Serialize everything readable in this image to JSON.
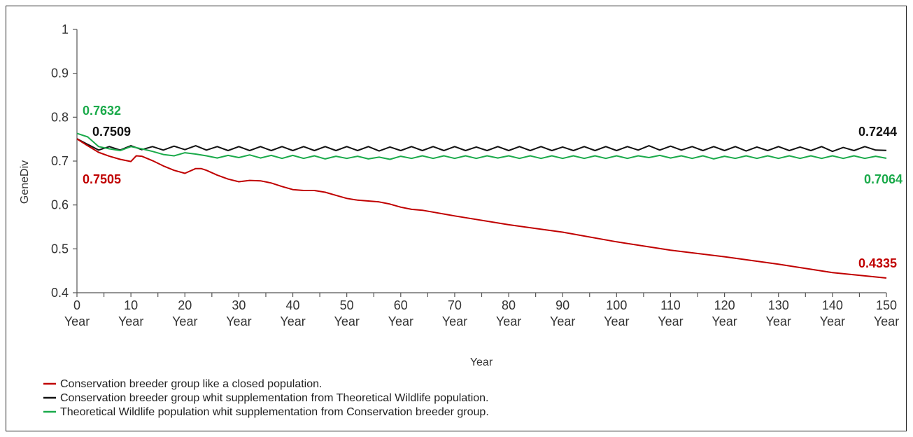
{
  "chart_data": {
    "type": "line",
    "title": "",
    "xlabel": "Year",
    "ylabel": "GeneDiv",
    "xlim": [
      0,
      150
    ],
    "ylim": [
      0.4,
      1
    ],
    "yticks": [
      "0.4",
      "0.5",
      "0.6",
      "0.7",
      "0.8",
      "0.9",
      "1"
    ],
    "xtick_values": [
      0,
      10,
      20,
      30,
      40,
      50,
      60,
      70,
      80,
      90,
      100,
      110,
      120,
      130,
      140,
      150
    ],
    "xtick_unit": "Year",
    "legend_position": "bottom",
    "grid": false,
    "series": [
      {
        "name": "Conservation breeder group like a closed population.",
        "color": "#c00000",
        "points": [
          [
            0,
            0.7505
          ],
          [
            2,
            0.735
          ],
          [
            4,
            0.72
          ],
          [
            6,
            0.711
          ],
          [
            8,
            0.704
          ],
          [
            10,
            0.699
          ],
          [
            11,
            0.712
          ],
          [
            12,
            0.711
          ],
          [
            14,
            0.701
          ],
          [
            16,
            0.689
          ],
          [
            18,
            0.679
          ],
          [
            20,
            0.672
          ],
          [
            22,
            0.683
          ],
          [
            23,
            0.683
          ],
          [
            24,
            0.679
          ],
          [
            26,
            0.668
          ],
          [
            28,
            0.659
          ],
          [
            30,
            0.653
          ],
          [
            32,
            0.656
          ],
          [
            34,
            0.655
          ],
          [
            36,
            0.65
          ],
          [
            38,
            0.642
          ],
          [
            40,
            0.635
          ],
          [
            42,
            0.633
          ],
          [
            44,
            0.633
          ],
          [
            46,
            0.629
          ],
          [
            48,
            0.622
          ],
          [
            50,
            0.615
          ],
          [
            52,
            0.611
          ],
          [
            54,
            0.609
          ],
          [
            56,
            0.607
          ],
          [
            58,
            0.602
          ],
          [
            60,
            0.595
          ],
          [
            62,
            0.59
          ],
          [
            64,
            0.588
          ],
          [
            70,
            0.575
          ],
          [
            80,
            0.555
          ],
          [
            90,
            0.538
          ],
          [
            100,
            0.516
          ],
          [
            110,
            0.497
          ],
          [
            120,
            0.482
          ],
          [
            130,
            0.465
          ],
          [
            140,
            0.446
          ],
          [
            150,
            0.4335
          ]
        ]
      },
      {
        "name": "Conservation breeder group whit supplementation from Theoretical Wildlife population.",
        "color": "#111111",
        "points": [
          [
            0,
            0.7509
          ],
          [
            2,
            0.738
          ],
          [
            4,
            0.725
          ],
          [
            6,
            0.733
          ],
          [
            8,
            0.725
          ],
          [
            10,
            0.735
          ],
          [
            12,
            0.726
          ],
          [
            14,
            0.733
          ],
          [
            16,
            0.725
          ],
          [
            18,
            0.734
          ],
          [
            20,
            0.726
          ],
          [
            22,
            0.735
          ],
          [
            24,
            0.725
          ],
          [
            26,
            0.733
          ],
          [
            28,
            0.724
          ],
          [
            30,
            0.733
          ],
          [
            32,
            0.724
          ],
          [
            34,
            0.733
          ],
          [
            36,
            0.724
          ],
          [
            38,
            0.733
          ],
          [
            40,
            0.724
          ],
          [
            42,
            0.733
          ],
          [
            44,
            0.724
          ],
          [
            46,
            0.733
          ],
          [
            48,
            0.724
          ],
          [
            50,
            0.733
          ],
          [
            52,
            0.724
          ],
          [
            54,
            0.733
          ],
          [
            56,
            0.723
          ],
          [
            58,
            0.732
          ],
          [
            60,
            0.724
          ],
          [
            62,
            0.733
          ],
          [
            64,
            0.724
          ],
          [
            66,
            0.733
          ],
          [
            68,
            0.724
          ],
          [
            70,
            0.733
          ],
          [
            72,
            0.724
          ],
          [
            74,
            0.732
          ],
          [
            76,
            0.724
          ],
          [
            78,
            0.733
          ],
          [
            80,
            0.724
          ],
          [
            82,
            0.733
          ],
          [
            84,
            0.724
          ],
          [
            86,
            0.733
          ],
          [
            88,
            0.724
          ],
          [
            90,
            0.732
          ],
          [
            92,
            0.724
          ],
          [
            94,
            0.733
          ],
          [
            96,
            0.724
          ],
          [
            98,
            0.733
          ],
          [
            100,
            0.724
          ],
          [
            102,
            0.733
          ],
          [
            104,
            0.725
          ],
          [
            106,
            0.735
          ],
          [
            108,
            0.725
          ],
          [
            110,
            0.734
          ],
          [
            112,
            0.725
          ],
          [
            114,
            0.733
          ],
          [
            116,
            0.724
          ],
          [
            118,
            0.733
          ],
          [
            120,
            0.724
          ],
          [
            122,
            0.733
          ],
          [
            124,
            0.723
          ],
          [
            126,
            0.732
          ],
          [
            128,
            0.724
          ],
          [
            130,
            0.733
          ],
          [
            132,
            0.724
          ],
          [
            134,
            0.732
          ],
          [
            136,
            0.724
          ],
          [
            138,
            0.733
          ],
          [
            140,
            0.722
          ],
          [
            142,
            0.731
          ],
          [
            144,
            0.724
          ],
          [
            146,
            0.733
          ],
          [
            148,
            0.725
          ],
          [
            150,
            0.7244
          ]
        ]
      },
      {
        "name": "Theoretical Wildlife population whit supplementation from Conservation breeder group.",
        "color": "#1aaa4a",
        "points": [
          [
            0,
            0.7632
          ],
          [
            2,
            0.755
          ],
          [
            4,
            0.733
          ],
          [
            6,
            0.728
          ],
          [
            8,
            0.724
          ],
          [
            10,
            0.733
          ],
          [
            12,
            0.728
          ],
          [
            14,
            0.722
          ],
          [
            16,
            0.715
          ],
          [
            18,
            0.712
          ],
          [
            20,
            0.719
          ],
          [
            22,
            0.716
          ],
          [
            24,
            0.712
          ],
          [
            26,
            0.707
          ],
          [
            28,
            0.713
          ],
          [
            30,
            0.708
          ],
          [
            32,
            0.714
          ],
          [
            34,
            0.707
          ],
          [
            36,
            0.713
          ],
          [
            38,
            0.706
          ],
          [
            40,
            0.713
          ],
          [
            42,
            0.706
          ],
          [
            44,
            0.712
          ],
          [
            46,
            0.705
          ],
          [
            48,
            0.711
          ],
          [
            50,
            0.706
          ],
          [
            52,
            0.711
          ],
          [
            54,
            0.705
          ],
          [
            56,
            0.709
          ],
          [
            58,
            0.704
          ],
          [
            60,
            0.711
          ],
          [
            62,
            0.706
          ],
          [
            64,
            0.712
          ],
          [
            66,
            0.706
          ],
          [
            68,
            0.712
          ],
          [
            70,
            0.706
          ],
          [
            72,
            0.712
          ],
          [
            74,
            0.706
          ],
          [
            76,
            0.712
          ],
          [
            78,
            0.707
          ],
          [
            80,
            0.712
          ],
          [
            82,
            0.706
          ],
          [
            84,
            0.712
          ],
          [
            86,
            0.706
          ],
          [
            88,
            0.712
          ],
          [
            90,
            0.706
          ],
          [
            92,
            0.712
          ],
          [
            94,
            0.706
          ],
          [
            96,
            0.712
          ],
          [
            98,
            0.706
          ],
          [
            100,
            0.712
          ],
          [
            102,
            0.706
          ],
          [
            104,
            0.712
          ],
          [
            106,
            0.708
          ],
          [
            108,
            0.713
          ],
          [
            110,
            0.707
          ],
          [
            112,
            0.712
          ],
          [
            114,
            0.706
          ],
          [
            116,
            0.712
          ],
          [
            118,
            0.705
          ],
          [
            120,
            0.711
          ],
          [
            122,
            0.706
          ],
          [
            124,
            0.712
          ],
          [
            126,
            0.706
          ],
          [
            128,
            0.712
          ],
          [
            130,
            0.706
          ],
          [
            132,
            0.712
          ],
          [
            134,
            0.706
          ],
          [
            136,
            0.712
          ],
          [
            138,
            0.706
          ],
          [
            140,
            0.712
          ],
          [
            142,
            0.706
          ],
          [
            144,
            0.712
          ],
          [
            146,
            0.706
          ],
          [
            148,
            0.711
          ],
          [
            150,
            0.7064
          ]
        ]
      }
    ],
    "annotations": [
      {
        "text": "0.7632",
        "color": "#1aaa4a",
        "x": 0,
        "y": 0.7632
      },
      {
        "text": "0.7509",
        "color": "#111111",
        "x": 0,
        "y": 0.7509
      },
      {
        "text": "0.7505",
        "color": "#c00000",
        "x": 0,
        "y": 0.7505
      },
      {
        "text": "0.7244",
        "color": "#111111",
        "x": 150,
        "y": 0.7244
      },
      {
        "text": "0.7064",
        "color": "#1aaa4a",
        "x": 150,
        "y": 0.7064
      },
      {
        "text": "0.4335",
        "color": "#c00000",
        "x": 150,
        "y": 0.4335
      }
    ]
  }
}
